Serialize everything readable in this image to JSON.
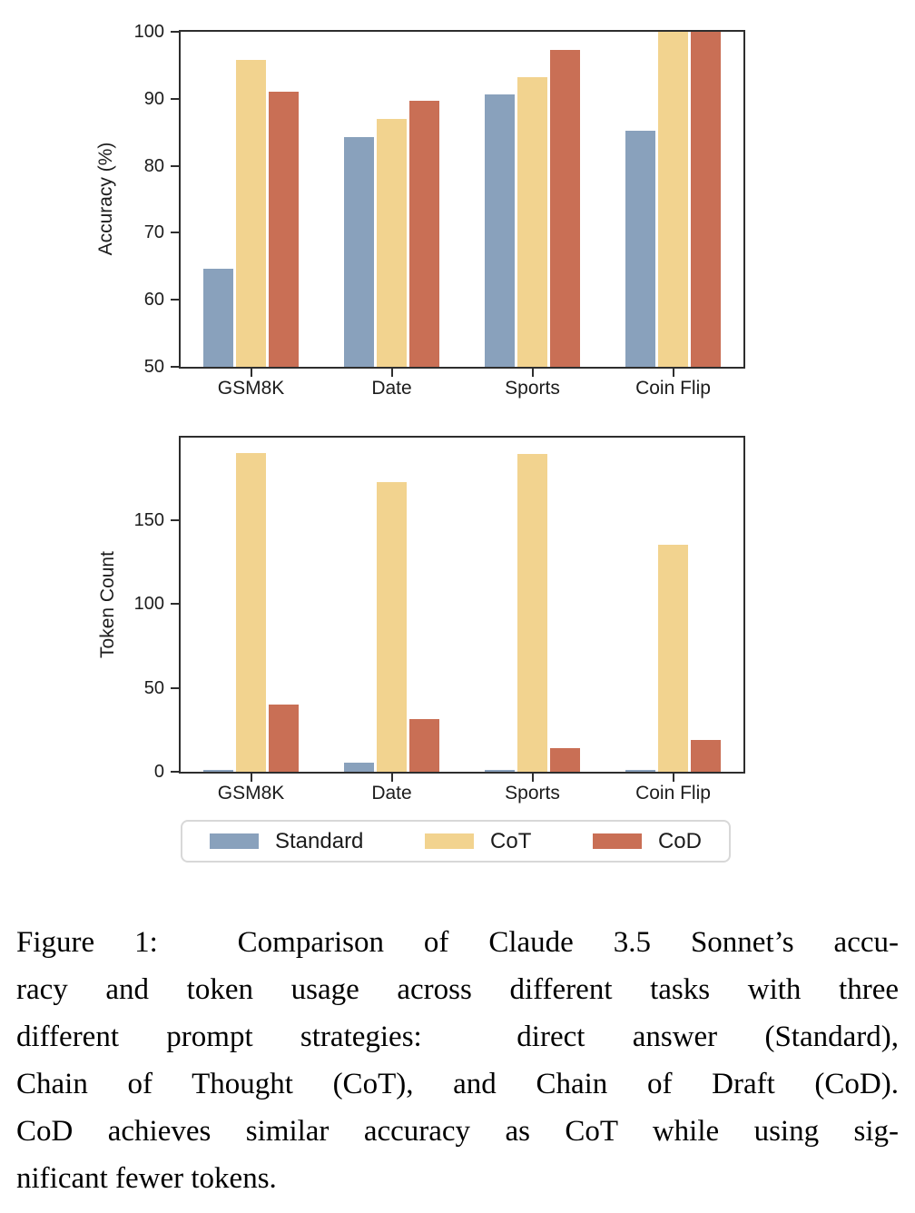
{
  "figure": {
    "type": "paper-figure",
    "accent_colors": {
      "standard": "#89A1BC",
      "cot": "#F2D38F",
      "cod": "#C96F55",
      "spine": "#2e2e2e"
    }
  },
  "chart_data": [
    {
      "type": "bar",
      "title": "",
      "categories": [
        "GSM8K",
        "Date",
        "Sports",
        "Coin Flip"
      ],
      "series": [
        {
          "name": "Standard",
          "color": "#89A1BC",
          "values": [
            64.6,
            84.3,
            90.6,
            85.2
          ]
        },
        {
          "name": "CoT",
          "color": "#F2D38F",
          "values": [
            95.8,
            87.0,
            93.2,
            100.0
          ]
        },
        {
          "name": "CoD",
          "color": "#C96F55",
          "values": [
            91.1,
            89.7,
            97.3,
            100.0
          ]
        }
      ],
      "xlabel": "",
      "ylabel": "Accuracy (%)",
      "ylim": [
        50,
        100
      ],
      "yticks": [
        50,
        60,
        70,
        80,
        90,
        100
      ],
      "grid": false,
      "legend_position": "shared-below"
    },
    {
      "type": "bar",
      "title": "",
      "categories": [
        "GSM8K",
        "Date",
        "Sports",
        "Coin Flip"
      ],
      "series": [
        {
          "name": "Standard",
          "color": "#89A1BC",
          "values": [
            1.1,
            5.2,
            1.0,
            1.0
          ]
        },
        {
          "name": "CoT",
          "color": "#F2D38F",
          "values": [
            190.0,
            172.5,
            189.4,
            135.3
          ]
        },
        {
          "name": "CoD",
          "color": "#C96F55",
          "values": [
            39.8,
            31.3,
            14.3,
            18.9
          ]
        }
      ],
      "xlabel": "",
      "ylabel": "Token Count",
      "ylim": [
        0,
        199
      ],
      "yticks": [
        0,
        50,
        100,
        150
      ],
      "grid": false,
      "legend_position": "shared-below"
    }
  ],
  "legend": {
    "items": [
      {
        "label": "Standard",
        "color": "#89A1BC"
      },
      {
        "label": "CoT",
        "color": "#F2D38F"
      },
      {
        "label": "CoD",
        "color": "#C96F55"
      }
    ]
  },
  "caption": {
    "lines": [
      "Figure 1:  Comparison of Claude 3.5 Sonnet’s accu-",
      "racy and token usage across different tasks with three",
      "different prompt strategies:  direct answer (Standard),",
      "Chain of Thought (CoT), and Chain of Draft (CoD).",
      "CoD achieves similar accuracy as CoT while using sig-",
      "nificant fewer tokens."
    ]
  }
}
